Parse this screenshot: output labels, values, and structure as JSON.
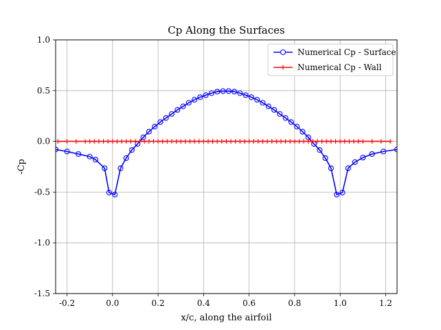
{
  "chart_data": {
    "type": "line",
    "title": "Cp Along the Surfaces",
    "xlabel": "x/c, along the airfoil",
    "ylabel": "-Cp",
    "xlim": [
      -0.25,
      1.25
    ],
    "ylim": [
      -1.5,
      1.0
    ],
    "xticks": [
      -0.2,
      0.0,
      0.2,
      0.4,
      0.6,
      0.8,
      1.0,
      1.2
    ],
    "xtick_labels": [
      "-0.2",
      "0.0",
      "0.2",
      "0.4",
      "0.6",
      "0.8",
      "1.0",
      "1.2"
    ],
    "yticks": [
      -1.5,
      -1.0,
      -0.5,
      0.0,
      0.5,
      1.0
    ],
    "ytick_labels": [
      "-1.5",
      "-1.0",
      "-0.5",
      "0.0",
      "0.5",
      "1.0"
    ],
    "grid": true,
    "legend_position": "top-right",
    "series": [
      {
        "name": "Numerical Cp - Surface",
        "color": "#0000ff",
        "marker": "open-circle",
        "x": [
          -0.25,
          -0.2,
          -0.15,
          -0.1,
          -0.075,
          -0.035,
          -0.015,
          0.01,
          0.035,
          0.06,
          0.085,
          0.11,
          0.135,
          0.16,
          0.185,
          0.21,
          0.235,
          0.26,
          0.285,
          0.31,
          0.335,
          0.36,
          0.385,
          0.41,
          0.435,
          0.46,
          0.485,
          0.51,
          0.535,
          0.56,
          0.585,
          0.61,
          0.635,
          0.66,
          0.685,
          0.71,
          0.735,
          0.76,
          0.785,
          0.81,
          0.835,
          0.86,
          0.885,
          0.91,
          0.935,
          0.96,
          0.985,
          1.01,
          1.035,
          1.065,
          1.1,
          1.14,
          1.19,
          1.25
        ],
        "y": [
          -0.08,
          -0.1,
          -0.125,
          -0.15,
          -0.18,
          -0.265,
          -0.505,
          -0.525,
          -0.265,
          -0.165,
          -0.085,
          -0.025,
          0.04,
          0.095,
          0.145,
          0.19,
          0.23,
          0.27,
          0.31,
          0.345,
          0.38,
          0.41,
          0.435,
          0.455,
          0.475,
          0.49,
          0.495,
          0.495,
          0.49,
          0.475,
          0.455,
          0.435,
          0.41,
          0.38,
          0.345,
          0.31,
          0.27,
          0.23,
          0.19,
          0.145,
          0.095,
          0.04,
          -0.025,
          -0.085,
          -0.165,
          -0.265,
          -0.525,
          -0.505,
          -0.265,
          -0.205,
          -0.16,
          -0.125,
          -0.1,
          -0.08
        ]
      },
      {
        "name": "Numerical Cp - Wall",
        "color": "#ff0000",
        "marker": "plus",
        "x": [
          -0.24,
          -0.2,
          -0.16,
          -0.12,
          -0.1,
          -0.08,
          -0.06,
          -0.04,
          -0.02,
          0.0,
          0.02,
          0.04,
          0.06,
          0.08,
          0.1,
          0.12,
          0.14,
          0.16,
          0.18,
          0.2,
          0.22,
          0.24,
          0.26,
          0.28,
          0.3,
          0.32,
          0.34,
          0.36,
          0.38,
          0.4,
          0.42,
          0.44,
          0.46,
          0.48,
          0.5,
          0.52,
          0.54,
          0.56,
          0.58,
          0.6,
          0.62,
          0.64,
          0.66,
          0.68,
          0.7,
          0.72,
          0.74,
          0.76,
          0.78,
          0.8,
          0.82,
          0.84,
          0.86,
          0.88,
          0.9,
          0.92,
          0.94,
          0.96,
          0.98,
          1.0,
          1.02,
          1.04,
          1.06,
          1.08,
          1.1,
          1.14,
          1.18,
          1.22
        ],
        "y": [
          0.0,
          0.0,
          0.0,
          0.0,
          0.0,
          0.0,
          0.0,
          0.0,
          0.0,
          0.0,
          0.0,
          0.0,
          0.0,
          0.0,
          0.0,
          0.0,
          0.0,
          0.0,
          0.0,
          0.0,
          0.0,
          0.0,
          0.0,
          0.0,
          0.0,
          0.0,
          0.0,
          0.0,
          0.0,
          0.0,
          0.0,
          0.0,
          0.0,
          0.0,
          0.0,
          0.0,
          0.0,
          0.0,
          0.0,
          0.0,
          0.0,
          0.0,
          0.0,
          0.0,
          0.0,
          0.0,
          0.0,
          0.0,
          0.0,
          0.0,
          0.0,
          0.0,
          0.0,
          0.0,
          0.0,
          0.0,
          0.0,
          0.0,
          0.0,
          0.0,
          0.0,
          0.0,
          0.0,
          0.0,
          0.0,
          0.0,
          0.0,
          0.0
        ]
      }
    ]
  }
}
